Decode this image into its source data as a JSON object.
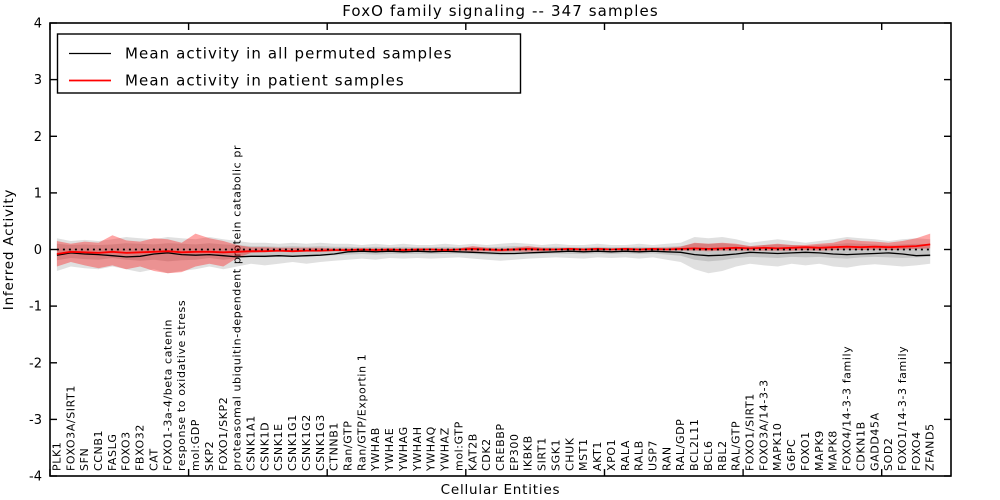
{
  "chart_data": {
    "type": "line",
    "title": "FoxO family signaling -- 347 samples",
    "xlabel": "Cellular Entities",
    "ylabel": "Inferred Activity",
    "ylim": [
      -4,
      4
    ],
    "yticks": [
      -4,
      -3,
      -2,
      -1,
      0,
      1,
      2,
      3,
      4
    ],
    "xlim": [
      0,
      65
    ],
    "xticks": [
      0,
      10,
      20,
      30,
      40,
      50,
      60
    ],
    "grid": false,
    "legend_position": "upper left",
    "background_color": "#ffffff",
    "frame_color": "#000000",
    "categories": [
      "PLK1",
      "FOXO3A/SIRT1",
      "SFN",
      "CCNB1",
      "FASLG",
      "FOXO3",
      "FBXO32",
      "CAT",
      "FOXO1-3a-4/beta catenin",
      "response to oxidative stress",
      "mol:GDP",
      "SKP2",
      "FOXO1/SKP2",
      "proteasomal ubiquitin-dependent protein catabolic pr",
      "CSNK1A1",
      "CSNK1D",
      "CSNK1E",
      "CSNK1G1",
      "CSNK1G2",
      "CSNK1G3",
      "CTNNB1",
      "Ran/GTP",
      "Ran/GTP/Exportin 1",
      "YWHAB",
      "YWHAE",
      "YWHAG",
      "YWHAH",
      "YWHAQ",
      "YWHAZ",
      "mol:GTP",
      "KAT2B",
      "CDK2",
      "CREBBP",
      "EP300",
      "IKBKB",
      "SIRT1",
      "SGK1",
      "CHUK",
      "MST1",
      "AKT1",
      "XPO1",
      "RALA",
      "RALB",
      "USP7",
      "RAN",
      "RAL/GDP",
      "BCL2L11",
      "BCL6",
      "RBL2",
      "RAL/GTP",
      "FOXO1/SIRT1",
      "FOXO3A/14-3-3",
      "MAPK10",
      "G6PC",
      "FOXO1",
      "MAPK9",
      "MAPK8",
      "FOXO4/14-3-3 family",
      "CDKN1B",
      "GADD45A",
      "SOD2",
      "FOXO1/14-3-3 family",
      "FOXO4",
      "ZFAND5"
    ],
    "series": [
      {
        "name": "Mean activity in all permuted samples",
        "color": "#000000",
        "style": "solid",
        "values": [
          -0.1,
          -0.06,
          -0.08,
          -0.09,
          -0.11,
          -0.13,
          -0.12,
          -0.08,
          -0.06,
          -0.09,
          -0.1,
          -0.09,
          -0.11,
          -0.13,
          -0.12,
          -0.12,
          -0.11,
          -0.12,
          -0.11,
          -0.1,
          -0.08,
          -0.04,
          -0.03,
          -0.04,
          -0.03,
          -0.04,
          -0.03,
          -0.04,
          -0.03,
          -0.04,
          -0.05,
          -0.06,
          -0.07,
          -0.07,
          -0.06,
          -0.05,
          -0.04,
          -0.03,
          -0.04,
          -0.03,
          -0.04,
          -0.03,
          -0.04,
          -0.03,
          -0.04,
          -0.05,
          -0.09,
          -0.11,
          -0.1,
          -0.08,
          -0.05,
          -0.06,
          -0.07,
          -0.06,
          -0.05,
          -0.06,
          -0.08,
          -0.09,
          -0.08,
          -0.07,
          -0.06,
          -0.08,
          -0.11,
          -0.1
        ]
      },
      {
        "name": "Mean activity in patient samples",
        "color": "#ff0000",
        "style": "solid",
        "values": [
          -0.08,
          -0.04,
          -0.05,
          -0.06,
          -0.04,
          -0.06,
          -0.05,
          -0.04,
          -0.03,
          -0.05,
          -0.04,
          -0.04,
          -0.05,
          -0.04,
          -0.03,
          -0.03,
          -0.02,
          -0.03,
          -0.02,
          -0.02,
          -0.01,
          -0.01,
          0.0,
          -0.01,
          0.0,
          -0.01,
          0.0,
          0.0,
          -0.01,
          0.0,
          0.01,
          0.0,
          -0.01,
          0.0,
          0.01,
          0.0,
          0.0,
          0.01,
          0.0,
          0.01,
          0.0,
          0.01,
          0.0,
          0.01,
          0.0,
          0.01,
          0.02,
          0.01,
          0.02,
          0.03,
          0.02,
          0.03,
          0.02,
          0.03,
          0.04,
          0.03,
          0.04,
          0.05,
          0.04,
          0.05,
          0.04,
          0.05,
          0.06,
          0.09
        ]
      },
      {
        "name": "zero-reference",
        "color": "#000000",
        "style": "dotted",
        "constant": 0
      }
    ],
    "bands": [
      {
        "name": "permuted-range-outer",
        "color": "#000000",
        "opacity": 0.12,
        "upper": [
          0.2,
          0.15,
          0.17,
          0.15,
          0.18,
          0.22,
          0.2,
          0.18,
          0.22,
          0.2,
          0.18,
          0.22,
          0.18,
          0.15,
          0.12,
          0.12,
          0.1,
          0.12,
          0.1,
          0.12,
          0.1,
          0.1,
          0.08,
          0.1,
          0.08,
          0.1,
          0.08,
          0.08,
          0.1,
          0.08,
          0.1,
          0.08,
          0.1,
          0.12,
          0.1,
          0.08,
          0.1,
          0.08,
          0.08,
          0.1,
          0.08,
          0.08,
          0.1,
          0.08,
          0.1,
          0.12,
          0.22,
          0.2,
          0.22,
          0.18,
          0.12,
          0.15,
          0.18,
          0.15,
          0.12,
          0.15,
          0.18,
          0.22,
          0.2,
          0.18,
          0.15,
          0.18,
          0.2,
          0.18
        ],
        "lower": [
          -0.38,
          -0.3,
          -0.33,
          -0.35,
          -0.3,
          -0.35,
          -0.4,
          -0.35,
          -0.42,
          -0.38,
          -0.35,
          -0.3,
          -0.35,
          -0.3,
          -0.25,
          -0.28,
          -0.25,
          -0.22,
          -0.25,
          -0.22,
          -0.2,
          -0.18,
          -0.16,
          -0.18,
          -0.15,
          -0.16,
          -0.15,
          -0.16,
          -0.15,
          -0.14,
          -0.16,
          -0.18,
          -0.2,
          -0.18,
          -0.16,
          -0.15,
          -0.14,
          -0.15,
          -0.16,
          -0.14,
          -0.15,
          -0.14,
          -0.16,
          -0.14,
          -0.18,
          -0.22,
          -0.35,
          -0.42,
          -0.38,
          -0.3,
          -0.25,
          -0.28,
          -0.3,
          -0.25,
          -0.28,
          -0.25,
          -0.3,
          -0.32,
          -0.28,
          -0.26,
          -0.28,
          -0.3,
          -0.28,
          -0.25
        ]
      },
      {
        "name": "permuted-range-inner",
        "color": "#000000",
        "opacity": 0.12,
        "upper": [
          0.1,
          0.08,
          0.09,
          0.08,
          0.09,
          0.11,
          0.1,
          0.09,
          0.11,
          0.1,
          0.09,
          0.11,
          0.09,
          0.08,
          0.06,
          0.06,
          0.05,
          0.06,
          0.05,
          0.06,
          0.05,
          0.05,
          0.04,
          0.05,
          0.04,
          0.05,
          0.04,
          0.04,
          0.05,
          0.04,
          0.05,
          0.04,
          0.05,
          0.06,
          0.05,
          0.04,
          0.05,
          0.04,
          0.04,
          0.05,
          0.04,
          0.04,
          0.05,
          0.04,
          0.05,
          0.06,
          0.11,
          0.1,
          0.11,
          0.09,
          0.06,
          0.08,
          0.09,
          0.08,
          0.06,
          0.08,
          0.09,
          0.11,
          0.1,
          0.09,
          0.08,
          0.09,
          0.1,
          0.09
        ],
        "lower": [
          -0.19,
          -0.15,
          -0.17,
          -0.18,
          -0.15,
          -0.18,
          -0.2,
          -0.18,
          -0.21,
          -0.19,
          -0.18,
          -0.15,
          -0.18,
          -0.15,
          -0.13,
          -0.14,
          -0.13,
          -0.11,
          -0.13,
          -0.11,
          -0.1,
          -0.09,
          -0.08,
          -0.09,
          -0.08,
          -0.08,
          -0.08,
          -0.08,
          -0.08,
          -0.07,
          -0.08,
          -0.09,
          -0.1,
          -0.09,
          -0.08,
          -0.08,
          -0.07,
          -0.08,
          -0.08,
          -0.07,
          -0.08,
          -0.07,
          -0.08,
          -0.07,
          -0.09,
          -0.11,
          -0.18,
          -0.21,
          -0.19,
          -0.15,
          -0.13,
          -0.14,
          -0.15,
          -0.13,
          -0.14,
          -0.13,
          -0.15,
          -0.16,
          -0.14,
          -0.13,
          -0.14,
          -0.15,
          -0.14,
          -0.13
        ]
      },
      {
        "name": "patient-range",
        "color": "#ff0000",
        "opacity": 0.35,
        "upper": [
          0.15,
          0.1,
          0.14,
          0.12,
          0.25,
          0.16,
          0.14,
          0.2,
          0.18,
          0.12,
          0.28,
          0.2,
          0.15,
          0.08,
          0.04,
          0.04,
          0.03,
          0.03,
          0.03,
          0.03,
          0.02,
          0.02,
          0.02,
          0.02,
          0.02,
          0.02,
          0.02,
          0.02,
          0.02,
          0.02,
          0.06,
          0.03,
          0.02,
          0.03,
          0.06,
          0.03,
          0.02,
          0.03,
          0.02,
          0.03,
          0.02,
          0.03,
          0.02,
          0.03,
          0.03,
          0.05,
          0.12,
          0.1,
          0.12,
          0.1,
          0.06,
          0.08,
          0.1,
          0.08,
          0.08,
          0.1,
          0.12,
          0.18,
          0.15,
          0.14,
          0.12,
          0.15,
          0.2,
          0.28
        ],
        "lower": [
          -0.3,
          -0.22,
          -0.28,
          -0.33,
          -0.28,
          -0.35,
          -0.3,
          -0.38,
          -0.42,
          -0.4,
          -0.3,
          -0.25,
          -0.3,
          -0.15,
          -0.06,
          -0.05,
          -0.04,
          -0.05,
          -0.04,
          -0.04,
          -0.03,
          -0.03,
          -0.02,
          -0.03,
          -0.02,
          -0.03,
          -0.02,
          -0.02,
          -0.03,
          -0.02,
          -0.04,
          -0.03,
          -0.04,
          -0.03,
          -0.04,
          -0.03,
          -0.02,
          -0.02,
          -0.03,
          -0.02,
          -0.02,
          -0.02,
          -0.03,
          -0.02,
          -0.02,
          -0.02,
          -0.02,
          -0.03,
          -0.02,
          -0.02,
          -0.02,
          -0.02,
          -0.02,
          -0.02,
          -0.01,
          -0.02,
          -0.01,
          0.0,
          -0.01,
          0.0,
          -0.01,
          0.0,
          0.01,
          0.02
        ]
      }
    ]
  }
}
